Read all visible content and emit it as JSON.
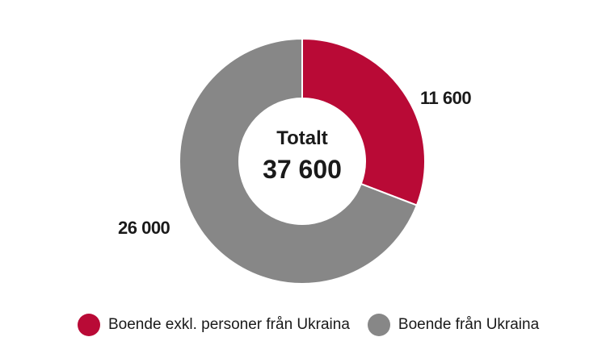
{
  "chart_data": {
    "type": "pie",
    "variant": "donut",
    "title": "",
    "center_label": "Totalt",
    "center_value": "37 600",
    "total": 37600,
    "categories": [
      "Boende exkl. personer från Ukraina",
      "Boende från Ukraina"
    ],
    "values": [
      11600,
      26000
    ],
    "value_labels": [
      "11 600",
      "26 000"
    ],
    "colors": [
      "#b90a36",
      "#878787"
    ],
    "legend_position": "bottom"
  },
  "legend": {
    "items": [
      {
        "label": "Boende exkl. personer från Ukraina",
        "color": "#b90a36"
      },
      {
        "label": "Boende från Ukraina",
        "color": "#878787"
      }
    ]
  }
}
